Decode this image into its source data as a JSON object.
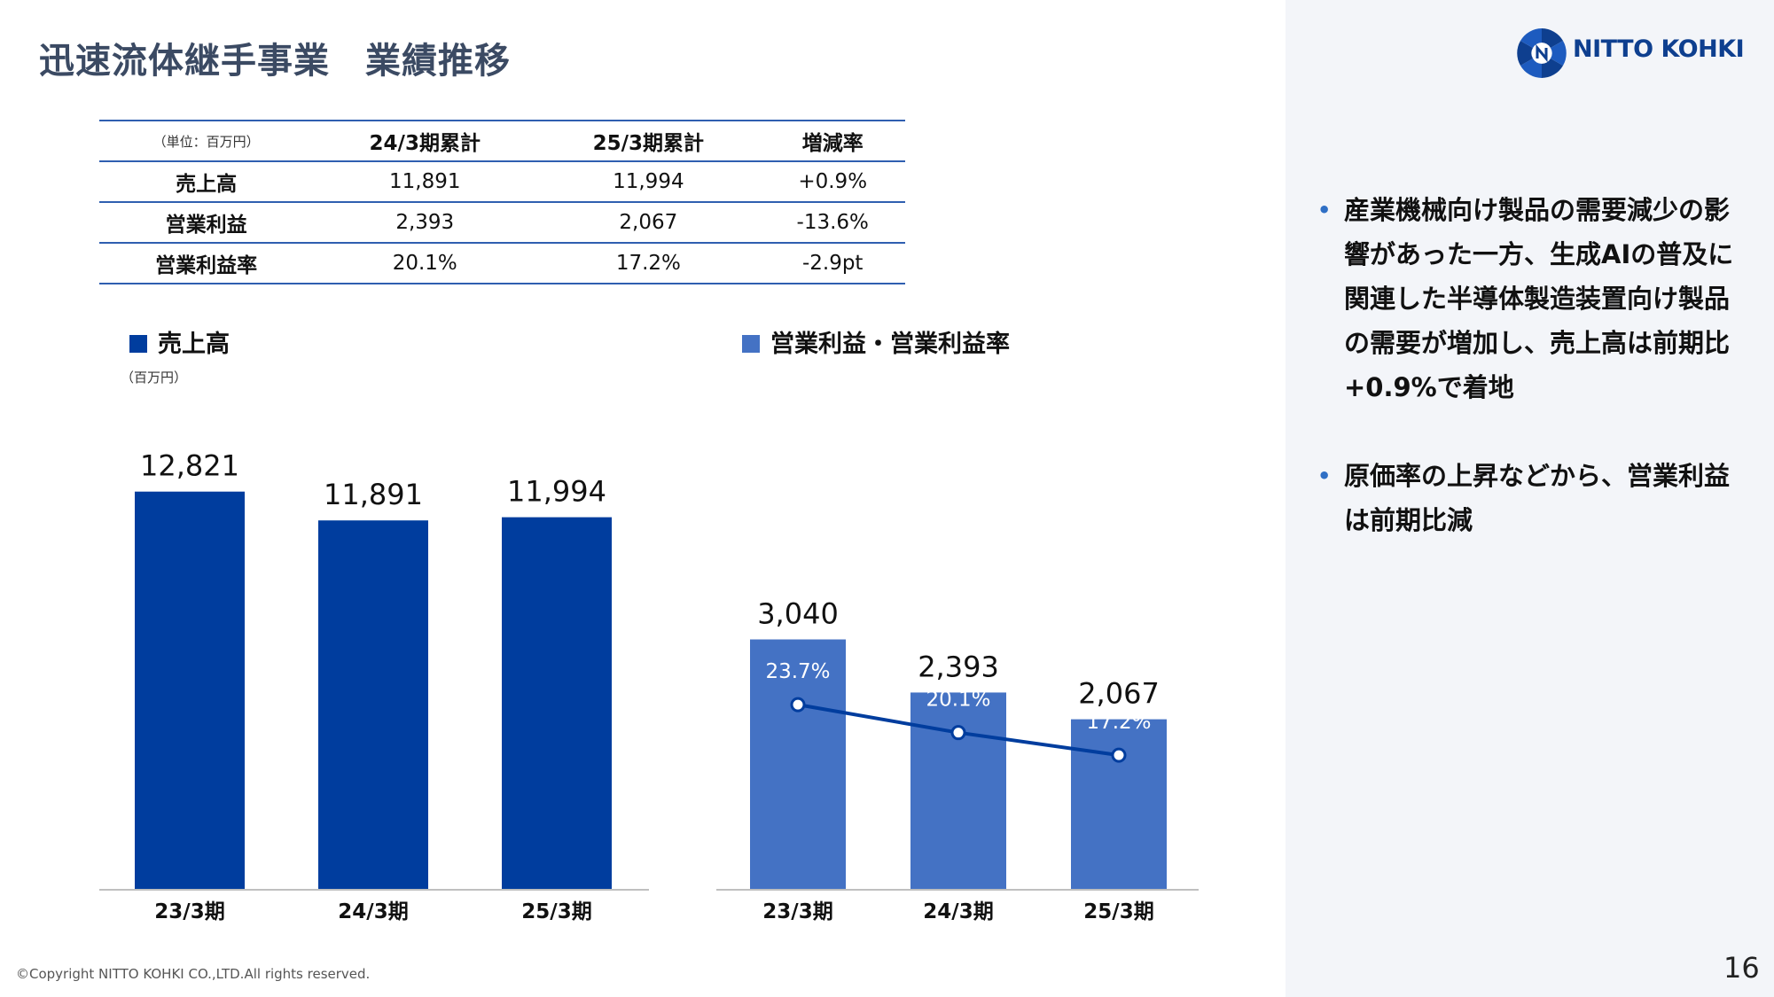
{
  "title": {
    "main": "迅速流体継手事業",
    "sub": "業績推移"
  },
  "logo": {
    "text": "NITTO KOHKI",
    "brand_color": "#0e3f8f",
    "icon": "nitto-kohki-logo-icon"
  },
  "table": {
    "unit": "（単位：百万円）",
    "headers": [
      "24/3期累計",
      "25/3期累計",
      "増減率"
    ],
    "rows": [
      {
        "label": "売上高",
        "values": [
          "11,891",
          "11,994",
          "+0.9%"
        ]
      },
      {
        "label": "営業利益",
        "values": [
          "2,393",
          "2,067",
          "-13.6%"
        ]
      },
      {
        "label": "営業利益率",
        "values": [
          "20.1%",
          "17.2%",
          "-2.9pt"
        ]
      }
    ]
  },
  "charts": {
    "sales_legend": "売上高",
    "sales_unit": "（百万円）",
    "profit_legend": "営業利益・営業利益率"
  },
  "chart_data": [
    {
      "type": "bar",
      "categories": [
        "23/3期",
        "24/3期",
        "25/3期"
      ],
      "values": [
        12821,
        11891,
        11994
      ],
      "value_labels": [
        "12,821",
        "11,891",
        "11,994"
      ],
      "ylim": [
        0,
        14300
      ],
      "color": "#003d9e",
      "grid": false
    },
    {
      "type": "bar",
      "categories": [
        "23/3期",
        "24/3期",
        "25/3期"
      ],
      "values": [
        3040,
        2393,
        2067
      ],
      "value_labels": [
        "3,040",
        "2,393",
        "2,067"
      ],
      "ylim": [
        0,
        5400
      ],
      "color": "#4472c4",
      "line_series": {
        "values": [
          23.7,
          20.1,
          17.2
        ],
        "labels": [
          "23.7%",
          "20.1%",
          "17.2%"
        ],
        "ylim": [
          0,
          57
        ],
        "color": "#003d9e"
      }
    }
  ],
  "bullets": [
    "産業機械向け製品の需要減少の影響があった一方、生成AIの普及に関連した半導体製造装置向け製品の需要が増加し、売上高は前期比+0.9%で着地",
    "原価率の上昇などから、営業利益は前期比減"
  ],
  "footer": {
    "copyright": "©Copyright NITTO KOHKI CO.,LTD.All rights reserved.",
    "page": "16"
  }
}
